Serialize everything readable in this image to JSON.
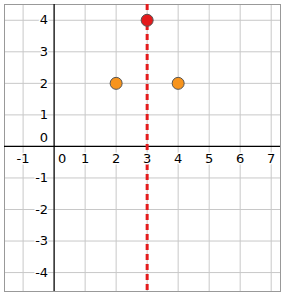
{
  "chart_data": {
    "type": "scatter",
    "x": [
      2,
      4,
      3
    ],
    "values": [
      2,
      2,
      4
    ],
    "colors": [
      "#f7941d",
      "#f7941d",
      "#e41a1c"
    ],
    "marker": "circle",
    "vline": {
      "x": 3,
      "color": "#e41a1c",
      "line_style": "dashed"
    },
    "xlim": [
      -1.6,
      7.3
    ],
    "xticks": [
      -1,
      0,
      1,
      2,
      3,
      4,
      5,
      6,
      7
    ],
    "ylim": [
      -4.6,
      4.5
    ],
    "yticks": [
      -4,
      -3,
      -2,
      -1,
      0,
      1,
      2,
      3,
      4
    ],
    "grid": true
  }
}
